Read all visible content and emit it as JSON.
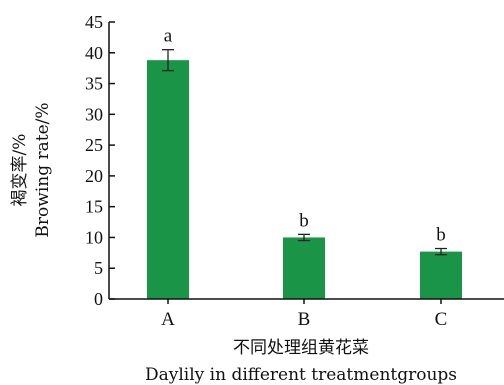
{
  "chart_data": {
    "type": "bar",
    "categories": [
      "A",
      "B",
      "C"
    ],
    "values": [
      38.8,
      10.0,
      7.7
    ],
    "errors": [
      1.7,
      0.5,
      0.5
    ],
    "significance_letters": [
      "a",
      "b",
      "b"
    ],
    "ylim": [
      0,
      45
    ],
    "yticks": [
      0,
      5,
      10,
      15,
      20,
      25,
      30,
      35,
      40,
      45
    ],
    "ylabel_cn": "褐变率/%",
    "ylabel_en": "Browing rate/%",
    "xlabel_cn": "不同处理组黄花菜",
    "xlabel_en": "Daylily in different treatmentgroups",
    "bar_color": "#1a9446",
    "axis_color": "#111111"
  }
}
